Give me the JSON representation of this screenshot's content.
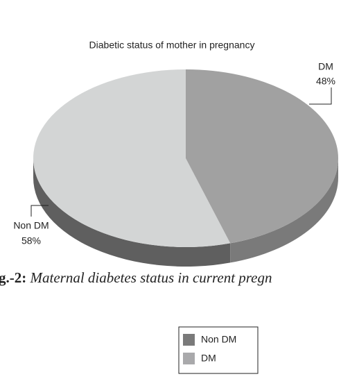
{
  "chart_data": {
    "type": "pie",
    "title": "Diabetic status of mother in pregnancy",
    "categories": [
      "Non DM",
      "DM"
    ],
    "values": [
      58,
      48
    ],
    "value_labels": [
      "58%",
      "48%"
    ],
    "colors": [
      "#d3d5d5",
      "#a1a1a1"
    ],
    "legend_colors": [
      "#7a7a7a",
      "#a9a9ab"
    ],
    "caption": {
      "label": "g.-2:",
      "text": "Maternal diabetes status in current pregn"
    }
  }
}
